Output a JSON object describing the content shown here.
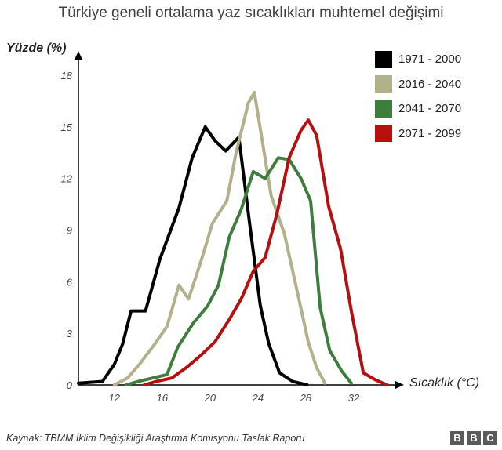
{
  "title": "Türkiye geneli ortalama yaz sıcaklıkları muhtemel değişimi",
  "source": "Kaynak: TBMM İklim Değişikliği Araştırma Komisyonu Taslak Raporu",
  "logo": [
    "B",
    "B",
    "C"
  ],
  "chart_data": {
    "type": "line",
    "ylabel": "Yüzde (%)",
    "xlabel": "Sıcaklık (°C)",
    "xlim": [
      9,
      36
    ],
    "ylim": [
      0,
      18
    ],
    "x_ticks": [
      12,
      16,
      20,
      24,
      28,
      32
    ],
    "y_ticks": [
      0,
      3,
      6,
      9,
      12,
      15,
      18
    ],
    "grid": false,
    "legend_position": "top-right",
    "series": [
      {
        "name": "1971 - 2000",
        "color": "#000000",
        "points": [
          [
            9,
            0.1
          ],
          [
            11,
            0.2
          ],
          [
            12,
            1.2
          ],
          [
            12.7,
            2.4
          ],
          [
            13.4,
            4.3
          ],
          [
            14.6,
            4.3
          ],
          [
            15.8,
            7.3
          ],
          [
            17.4,
            10.3
          ],
          [
            18.5,
            13.2
          ],
          [
            19.6,
            15.0
          ],
          [
            20.4,
            14.2
          ],
          [
            21.3,
            13.6
          ],
          [
            22.4,
            14.4
          ],
          [
            23.3,
            9.4
          ],
          [
            24.2,
            4.6
          ],
          [
            24.9,
            2.4
          ],
          [
            25.8,
            0.7
          ],
          [
            26.9,
            0.2
          ],
          [
            28.1,
            0
          ]
        ]
      },
      {
        "name": "2016 - 2040",
        "color": "#b2b18c",
        "points": [
          [
            12,
            0
          ],
          [
            13.1,
            0.4
          ],
          [
            14.1,
            1.2
          ],
          [
            15.4,
            2.4
          ],
          [
            16.4,
            3.4
          ],
          [
            17.4,
            5.8
          ],
          [
            18.2,
            5.0
          ],
          [
            19.2,
            7.1
          ],
          [
            20.2,
            9.4
          ],
          [
            21.4,
            10.7
          ],
          [
            22.2,
            13.6
          ],
          [
            23.2,
            16.4
          ],
          [
            23.7,
            17.0
          ],
          [
            25.1,
            11.0
          ],
          [
            26.2,
            8.8
          ],
          [
            27.1,
            6.0
          ],
          [
            28.2,
            2.5
          ],
          [
            28.9,
            1.0
          ],
          [
            29.6,
            0.1
          ]
        ]
      },
      {
        "name": "2041 - 2070",
        "color": "#3e7d3d",
        "points": [
          [
            13,
            0
          ],
          [
            14,
            0.2
          ],
          [
            15.2,
            0.4
          ],
          [
            16.4,
            0.6
          ],
          [
            17.3,
            2.2
          ],
          [
            18.6,
            3.6
          ],
          [
            19.8,
            4.6
          ],
          [
            20.7,
            5.8
          ],
          [
            21.6,
            8.6
          ],
          [
            22.6,
            10.2
          ],
          [
            23.6,
            12.4
          ],
          [
            24.6,
            12.0
          ],
          [
            25.7,
            13.2
          ],
          [
            26.6,
            13.1
          ],
          [
            27.6,
            12.0
          ],
          [
            28.4,
            10.7
          ],
          [
            29.2,
            4.5
          ],
          [
            30.0,
            2.0
          ],
          [
            31.0,
            0.8
          ],
          [
            31.8,
            0.1
          ]
        ]
      },
      {
        "name": "2071 - 2099",
        "color": "#b50f10",
        "points": [
          [
            14.5,
            0
          ],
          [
            15.5,
            0.2
          ],
          [
            16.8,
            0.4
          ],
          [
            18.0,
            1.0
          ],
          [
            19.2,
            1.7
          ],
          [
            20.4,
            2.5
          ],
          [
            21.6,
            3.8
          ],
          [
            22.6,
            5.0
          ],
          [
            23.6,
            6.6
          ],
          [
            24.6,
            7.4
          ],
          [
            25.6,
            10.0
          ],
          [
            26.6,
            13.2
          ],
          [
            27.6,
            14.8
          ],
          [
            28.2,
            15.4
          ],
          [
            28.9,
            14.5
          ],
          [
            29.9,
            10.4
          ],
          [
            30.9,
            7.9
          ],
          [
            31.8,
            4.3
          ],
          [
            32.8,
            0.7
          ],
          [
            33.8,
            0.3
          ],
          [
            34.8,
            0
          ]
        ]
      }
    ]
  }
}
